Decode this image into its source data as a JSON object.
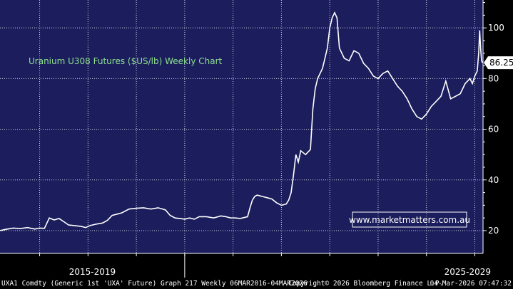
{
  "colors": {
    "plot_bg": "#1b1d5c",
    "outer_bg": "#000000",
    "line": "#ffffff",
    "grid": "#ffffff",
    "title": "#8fe08f",
    "watermark_border": "#ffffff"
  },
  "watermark": "www.marketmatters.com.au",
  "footer": {
    "left": "UXA1 Comdty (Generic 1st 'UXA' Future) Graph 217 Weekly 06MAR2016-04MAR2026",
    "center": "Copyright© 2026 Bloomberg Finance L.P.",
    "right": "04-Mar-2026 07:47:32"
  },
  "chart_data": {
    "type": "line",
    "title": "Uranium U308 Futures ($US/lb) Weekly Chart",
    "xlabel": "",
    "ylabel": "",
    "x_categories": [
      "2015-2019",
      "2025-2029"
    ],
    "yticks": [
      20,
      40,
      60,
      80,
      100
    ],
    "ylim": [
      11,
      111
    ],
    "xlim": [
      2016.18,
      2026.17
    ],
    "grid": true,
    "last_value": "86.25",
    "series": [
      {
        "values": [
          [
            2016.18,
            20.0
          ],
          [
            2016.3,
            20.5
          ],
          [
            2016.45,
            21.0
          ],
          [
            2016.6,
            20.8
          ],
          [
            2016.75,
            21.2
          ],
          [
            2016.9,
            20.6
          ],
          [
            2017.0,
            21.0
          ],
          [
            2017.1,
            20.9
          ],
          [
            2017.2,
            25.0
          ],
          [
            2017.3,
            24.2
          ],
          [
            2017.4,
            24.8
          ],
          [
            2017.5,
            23.5
          ],
          [
            2017.6,
            22.2
          ],
          [
            2017.7,
            22.0
          ],
          [
            2017.85,
            21.7
          ],
          [
            2017.95,
            21.2
          ],
          [
            2018.05,
            22.0
          ],
          [
            2018.15,
            22.5
          ],
          [
            2018.3,
            23.0
          ],
          [
            2018.4,
            24.0
          ],
          [
            2018.5,
            26.0
          ],
          [
            2018.6,
            26.5
          ],
          [
            2018.7,
            27.0
          ],
          [
            2018.85,
            28.5
          ],
          [
            2019.0,
            28.8
          ],
          [
            2019.15,
            29.0
          ],
          [
            2019.3,
            28.5
          ],
          [
            2019.45,
            29.0
          ],
          [
            2019.6,
            28.2
          ],
          [
            2019.7,
            26.0
          ],
          [
            2019.8,
            25.0
          ],
          [
            2019.9,
            24.8
          ],
          [
            2020.0,
            24.5
          ],
          [
            2020.1,
            25.0
          ],
          [
            2020.2,
            24.5
          ],
          [
            2020.3,
            25.5
          ],
          [
            2020.45,
            25.5
          ],
          [
            2020.6,
            25.0
          ],
          [
            2020.75,
            25.8
          ],
          [
            2020.85,
            25.5
          ],
          [
            2020.95,
            25.0
          ],
          [
            2021.05,
            25.0
          ],
          [
            2021.15,
            24.8
          ],
          [
            2021.3,
            25.5
          ],
          [
            2021.35,
            29.0
          ],
          [
            2021.4,
            32.0
          ],
          [
            2021.45,
            33.5
          ],
          [
            2021.5,
            34.0
          ],
          [
            2021.6,
            33.5
          ],
          [
            2021.7,
            33.0
          ],
          [
            2021.8,
            32.5
          ],
          [
            2021.9,
            31.0
          ],
          [
            2022.0,
            30.0
          ],
          [
            2022.1,
            30.5
          ],
          [
            2022.15,
            32.0
          ],
          [
            2022.2,
            35.0
          ],
          [
            2022.25,
            42.0
          ],
          [
            2022.3,
            50.0
          ],
          [
            2022.35,
            47.0
          ],
          [
            2022.4,
            51.5
          ],
          [
            2022.5,
            50.0
          ],
          [
            2022.55,
            51.0
          ],
          [
            2022.6,
            52.0
          ],
          [
            2022.65,
            68.0
          ],
          [
            2022.7,
            76.0
          ],
          [
            2022.75,
            80.0
          ],
          [
            2022.8,
            82.0
          ],
          [
            2022.85,
            84.0
          ],
          [
            2022.9,
            88.0
          ],
          [
            2022.95,
            92.0
          ],
          [
            2023.0,
            100.0
          ],
          [
            2023.05,
            104.0
          ],
          [
            2023.1,
            106.0
          ],
          [
            2023.15,
            104.0
          ],
          [
            2023.2,
            92.0
          ],
          [
            2023.3,
            88.0
          ],
          [
            2023.4,
            87.0
          ],
          [
            2023.5,
            91.0
          ],
          [
            2023.6,
            90.0
          ],
          [
            2023.7,
            86.0
          ],
          [
            2023.8,
            84.0
          ],
          [
            2023.9,
            81.0
          ],
          [
            2024.0,
            80.0
          ],
          [
            2024.1,
            82.0
          ],
          [
            2024.2,
            83.0
          ],
          [
            2024.3,
            80.0
          ],
          [
            2024.4,
            77.0
          ],
          [
            2024.5,
            75.0
          ],
          [
            2024.6,
            72.0
          ],
          [
            2024.7,
            68.0
          ],
          [
            2024.8,
            65.0
          ],
          [
            2024.9,
            64.0
          ],
          [
            2025.0,
            66.0
          ],
          [
            2025.1,
            69.0
          ],
          [
            2025.2,
            71.0
          ],
          [
            2025.3,
            73.0
          ],
          [
            2025.4,
            79.0
          ],
          [
            2025.5,
            72.0
          ],
          [
            2025.6,
            73.0
          ],
          [
            2025.7,
            74.0
          ],
          [
            2025.8,
            78.0
          ],
          [
            2025.9,
            80.0
          ],
          [
            2025.95,
            78.0
          ],
          [
            2026.0,
            81.0
          ],
          [
            2026.05,
            83.0
          ],
          [
            2026.08,
            90.0
          ],
          [
            2026.1,
            99.0
          ],
          [
            2026.12,
            92.0
          ],
          [
            2026.14,
            87.0
          ],
          [
            2026.16,
            86.25
          ]
        ]
      }
    ]
  }
}
